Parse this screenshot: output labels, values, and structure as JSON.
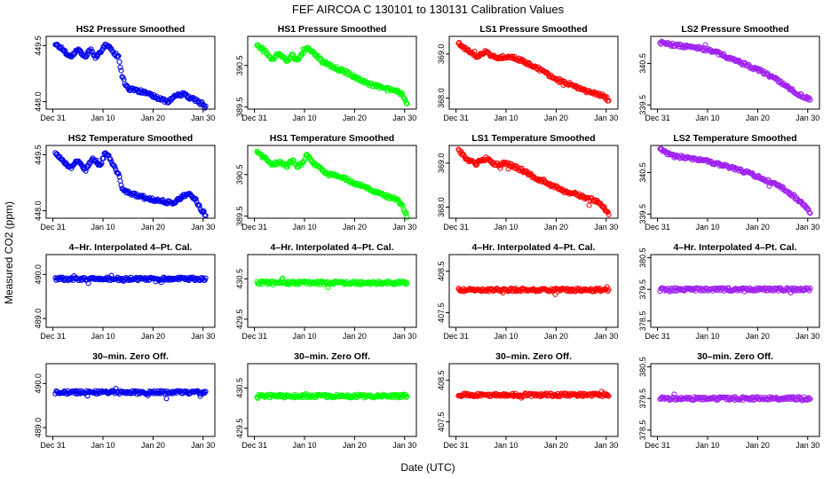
{
  "figure": {
    "title": "FEF   AIRCOA C   130101 to 130131   Calibration Values",
    "xlabel": "Date (UTC)",
    "ylabel": "Measured CO2 (ppm)"
  },
  "colors": {
    "blue": "#0000ee",
    "green": "#00ff00",
    "red": "#ff0000",
    "purple": "#a020f0"
  },
  "chart_data": [
    {
      "type": "scatter",
      "title": "HS2 Pressure Smoothed",
      "color": "blue",
      "xlim": [
        0,
        31
      ],
      "x_ticks": [
        0,
        10,
        20,
        30
      ],
      "x_tick_labels": [
        "Dec 31",
        "Jan 10",
        "Jan 20",
        "Jan 30"
      ],
      "ylim": [
        447.8,
        449.75
      ],
      "y_ticks": [
        448.0,
        449.5
      ],
      "y_tick_labels": [
        "448.0",
        "449.5"
      ],
      "trend": [
        [
          0.5,
          449.55
        ],
        [
          2,
          449.4
        ],
        [
          3.5,
          449.2
        ],
        [
          5,
          449.4
        ],
        [
          6.5,
          449.2
        ],
        [
          7.5,
          449.4
        ],
        [
          8.5,
          449.2
        ],
        [
          9.5,
          449.3
        ],
        [
          10.5,
          449.55
        ],
        [
          12,
          449.35
        ],
        [
          13,
          449.2
        ],
        [
          14,
          448.6
        ],
        [
          15,
          448.35
        ],
        [
          17,
          448.3
        ],
        [
          19,
          448.2
        ],
        [
          21,
          448.1
        ],
        [
          23,
          448.0
        ],
        [
          24.5,
          448.15
        ],
        [
          26,
          448.2
        ],
        [
          27.5,
          448.1
        ],
        [
          29,
          448.0
        ],
        [
          29.5,
          447.95
        ],
        [
          30.5,
          447.85
        ]
      ]
    },
    {
      "type": "scatter",
      "title": "HS1 Pressure Smoothed",
      "color": "green",
      "xlim": [
        0,
        31
      ],
      "x_ticks": [
        0,
        10,
        20,
        30
      ],
      "x_tick_labels": [
        "Dec 31",
        "Jan 10",
        "Jan 20",
        "Jan 30"
      ],
      "ylim": [
        389.45,
        391.2
      ],
      "y_ticks": [
        389.5,
        390.5
      ],
      "y_tick_labels": [
        "389.5",
        "390.5"
      ],
      "trend": [
        [
          0.5,
          391.0
        ],
        [
          2,
          390.85
        ],
        [
          3.5,
          390.65
        ],
        [
          5,
          390.8
        ],
        [
          6.5,
          390.6
        ],
        [
          7.5,
          390.75
        ],
        [
          8.5,
          390.6
        ],
        [
          9.5,
          390.8
        ],
        [
          10.5,
          390.95
        ],
        [
          12,
          390.8
        ],
        [
          13.5,
          390.6
        ],
        [
          15,
          390.5
        ],
        [
          17,
          390.4
        ],
        [
          19,
          390.3
        ],
        [
          21,
          390.15
        ],
        [
          23,
          390.05
        ],
        [
          24.5,
          390.0
        ],
        [
          26,
          389.95
        ],
        [
          28,
          389.9
        ],
        [
          29.5,
          389.8
        ],
        [
          30.5,
          389.55
        ]
      ]
    },
    {
      "type": "scatter",
      "title": "LS1 Pressure Smoothed",
      "color": "red",
      "xlim": [
        0,
        31
      ],
      "x_ticks": [
        0,
        10,
        20,
        30
      ],
      "x_tick_labels": [
        "Dec 31",
        "Jan 10",
        "Jan 20",
        "Jan 30"
      ],
      "ylim": [
        367.75,
        369.4
      ],
      "y_ticks": [
        368.0,
        369.0
      ],
      "y_tick_labels": [
        "368.0",
        "369.0"
      ],
      "trend": [
        [
          0.5,
          369.25
        ],
        [
          2,
          369.1
        ],
        [
          4,
          368.95
        ],
        [
          6,
          369.05
        ],
        [
          8,
          368.9
        ],
        [
          10,
          368.95
        ],
        [
          12,
          368.9
        ],
        [
          14,
          368.8
        ],
        [
          16,
          368.7
        ],
        [
          18,
          368.55
        ],
        [
          20,
          368.45
        ],
        [
          22,
          368.35
        ],
        [
          24,
          368.25
        ],
        [
          26,
          368.15
        ],
        [
          28,
          368.1
        ],
        [
          29.5,
          368.05
        ],
        [
          30.5,
          367.95
        ]
      ]
    },
    {
      "type": "scatter",
      "title": "LS2 Pressure Smoothed",
      "color": "purple",
      "xlim": [
        0,
        31
      ],
      "x_ticks": [
        0,
        10,
        20,
        30
      ],
      "x_tick_labels": [
        "Dec 31",
        "Jan 10",
        "Jan 20",
        "Jan 30"
      ],
      "ylim": [
        339.4,
        341.15
      ],
      "y_ticks": [
        339.5,
        340.5
      ],
      "y_tick_labels": [
        "339.5",
        "340.5"
      ],
      "trend": [
        [
          0.5,
          341.0
        ],
        [
          3,
          340.95
        ],
        [
          6,
          340.9
        ],
        [
          9,
          340.85
        ],
        [
          12,
          340.75
        ],
        [
          15,
          340.6
        ],
        [
          18,
          340.45
        ],
        [
          21,
          340.3
        ],
        [
          24,
          340.1
        ],
        [
          27,
          339.85
        ],
        [
          29,
          339.7
        ],
        [
          30.5,
          339.65
        ]
      ]
    },
    {
      "type": "scatter",
      "title": "HS2 Temperature Smoothed",
      "color": "blue",
      "xlim": [
        0,
        31
      ],
      "x_ticks": [
        0,
        10,
        20,
        30
      ],
      "x_tick_labels": [
        "Dec 31",
        "Jan 10",
        "Jan 20",
        "Jan 30"
      ],
      "ylim": [
        447.8,
        449.75
      ],
      "y_ticks": [
        448.0,
        449.5
      ],
      "y_tick_labels": [
        "448.0",
        "449.5"
      ],
      "trend": [
        [
          0.5,
          449.55
        ],
        [
          2,
          449.35
        ],
        [
          3.5,
          449.15
        ],
        [
          5,
          449.35
        ],
        [
          6.5,
          449.1
        ],
        [
          8,
          449.4
        ],
        [
          9.5,
          449.2
        ],
        [
          10.5,
          449.6
        ],
        [
          12,
          449.25
        ],
        [
          13,
          449.0
        ],
        [
          14,
          448.55
        ],
        [
          16,
          448.45
        ],
        [
          18,
          448.35
        ],
        [
          20,
          448.3
        ],
        [
          22,
          448.25
        ],
        [
          24,
          448.2
        ],
        [
          25.5,
          448.35
        ],
        [
          27,
          448.45
        ],
        [
          28.5,
          448.3
        ],
        [
          29.5,
          448.05
        ],
        [
          30.5,
          447.9
        ]
      ]
    },
    {
      "type": "scatter",
      "title": "HS1 Temperature Smoothed",
      "color": "green",
      "xlim": [
        0,
        31
      ],
      "x_ticks": [
        0,
        10,
        20,
        30
      ],
      "x_tick_labels": [
        "Dec 31",
        "Jan 10",
        "Jan 20",
        "Jan 30"
      ],
      "ylim": [
        389.45,
        391.2
      ],
      "y_ticks": [
        389.5,
        390.5
      ],
      "y_tick_labels": [
        "389.5",
        "390.5"
      ],
      "trend": [
        [
          0.5,
          391.05
        ],
        [
          2,
          390.9
        ],
        [
          3.5,
          390.75
        ],
        [
          5,
          390.8
        ],
        [
          6.5,
          390.7
        ],
        [
          7.5,
          390.85
        ],
        [
          8.5,
          390.7
        ],
        [
          9.5,
          390.75
        ],
        [
          10.5,
          391.0
        ],
        [
          12,
          390.75
        ],
        [
          13.5,
          390.6
        ],
        [
          15,
          390.5
        ],
        [
          17,
          390.45
        ],
        [
          19,
          390.35
        ],
        [
          21,
          390.25
        ],
        [
          23,
          390.15
        ],
        [
          25,
          390.05
        ],
        [
          27,
          389.95
        ],
        [
          28.5,
          389.9
        ],
        [
          29.5,
          389.75
        ],
        [
          30.5,
          389.5
        ]
      ]
    },
    {
      "type": "scatter",
      "title": "LS1 Temperature Smoothed",
      "color": "red",
      "xlim": [
        0,
        31
      ],
      "x_ticks": [
        0,
        10,
        20,
        30
      ],
      "x_tick_labels": [
        "Dec 31",
        "Jan 10",
        "Jan 20",
        "Jan 30"
      ],
      "ylim": [
        367.75,
        369.4
      ],
      "y_ticks": [
        368.0,
        369.0
      ],
      "y_tick_labels": [
        "368.0",
        "369.0"
      ],
      "trend": [
        [
          0.5,
          369.3
        ],
        [
          2,
          369.1
        ],
        [
          4,
          369.0
        ],
        [
          6,
          369.1
        ],
        [
          8,
          368.95
        ],
        [
          10,
          369.0
        ],
        [
          12,
          368.9
        ],
        [
          14,
          368.8
        ],
        [
          16,
          368.65
        ],
        [
          18,
          368.55
        ],
        [
          20,
          368.45
        ],
        [
          22,
          368.35
        ],
        [
          24,
          368.3
        ],
        [
          26,
          368.2
        ],
        [
          28,
          368.15
        ],
        [
          29.5,
          368.0
        ],
        [
          30.5,
          367.85
        ]
      ]
    },
    {
      "type": "scatter",
      "title": "LS2 Temperature Smoothed",
      "color": "purple",
      "xlim": [
        0,
        31
      ],
      "x_ticks": [
        0,
        10,
        20,
        30
      ],
      "x_tick_labels": [
        "Dec 31",
        "Jan 10",
        "Jan 20",
        "Jan 30"
      ],
      "ylim": [
        339.4,
        341.15
      ],
      "y_ticks": [
        339.5,
        340.5
      ],
      "y_tick_labels": [
        "339.5",
        "340.5"
      ],
      "trend": [
        [
          0.5,
          341.05
        ],
        [
          3,
          340.9
        ],
        [
          6,
          340.85
        ],
        [
          9,
          340.8
        ],
        [
          12,
          340.7
        ],
        [
          15,
          340.6
        ],
        [
          18,
          340.5
        ],
        [
          21,
          340.35
        ],
        [
          24,
          340.2
        ],
        [
          27,
          339.95
        ],
        [
          29,
          339.75
        ],
        [
          30.5,
          339.55
        ]
      ]
    },
    {
      "type": "scatter",
      "title": "4–Hr. Interpolated 4–Pt. Cal.",
      "color": "blue",
      "xlim": [
        0,
        31
      ],
      "x_ticks": [
        0,
        10,
        20,
        30
      ],
      "x_tick_labels": [
        "Dec 31",
        "Jan 10",
        "Jan 20",
        "Jan 30"
      ],
      "ylim": [
        488.8,
        490.45
      ],
      "y_ticks": [
        489.0,
        490.0
      ],
      "y_tick_labels": [
        "489.0",
        "490.0"
      ],
      "trend": [
        [
          0.5,
          489.9
        ],
        [
          30.5,
          489.9
        ]
      ]
    },
    {
      "type": "scatter",
      "title": "4–Hr. Interpolated 4–Pt. Cal.",
      "color": "green",
      "xlim": [
        0,
        31
      ],
      "x_ticks": [
        0,
        10,
        20,
        30
      ],
      "x_tick_labels": [
        "Dec 31",
        "Jan 10",
        "Jan 20",
        "Jan 30"
      ],
      "ylim": [
        429.3,
        431.1
      ],
      "y_ticks": [
        429.5,
        430.5
      ],
      "y_tick_labels": [
        "429.5",
        "430.5"
      ],
      "trend": [
        [
          0.5,
          430.4
        ],
        [
          30.5,
          430.4
        ]
      ]
    },
    {
      "type": "scatter",
      "title": "4–Hr. Interpolated 4–Pt. Cal.",
      "color": "red",
      "xlim": [
        0,
        31
      ],
      "x_ticks": [
        0,
        10,
        20,
        30
      ],
      "x_tick_labels": [
        "Dec 31",
        "Jan 10",
        "Jan 20",
        "Jan 30"
      ],
      "ylim": [
        407.15,
        408.9
      ],
      "y_ticks": [
        407.5,
        408.5
      ],
      "y_tick_labels": [
        "407.5",
        "408.5"
      ],
      "trend": [
        [
          0.5,
          408.05
        ],
        [
          30.5,
          408.05
        ]
      ]
    },
    {
      "type": "scatter",
      "title": "4–Hr. Interpolated 4–Pt. Cal.",
      "color": "purple",
      "xlim": [
        0,
        31
      ],
      "x_ticks": [
        0,
        10,
        20,
        30
      ],
      "x_tick_labels": [
        "Dec 31",
        "Jan 10",
        "Jan 20",
        "Jan 30"
      ],
      "ylim": [
        378.3,
        380.6
      ],
      "y_ticks": [
        378.5,
        379.5,
        380.5
      ],
      "y_tick_labels": [
        "378.5",
        "379.5",
        "380.5"
      ],
      "trend": [
        [
          0.5,
          379.5
        ],
        [
          30.5,
          379.5
        ]
      ]
    },
    {
      "type": "scatter",
      "title": "30–min. Zero Off.",
      "color": "blue",
      "xlim": [
        0,
        31
      ],
      "x_ticks": [
        0,
        10,
        20,
        30
      ],
      "x_tick_labels": [
        "Dec 31",
        "Jan 10",
        "Jan 20",
        "Jan 30"
      ],
      "ylim": [
        488.8,
        490.45
      ],
      "y_ticks": [
        489.0,
        490.0
      ],
      "y_tick_labels": [
        "489.0",
        "490.0"
      ],
      "trend": [
        [
          0.5,
          489.8
        ],
        [
          30.5,
          489.8
        ]
      ]
    },
    {
      "type": "scatter",
      "title": "30–min. Zero Off.",
      "color": "green",
      "xlim": [
        0,
        31
      ],
      "x_ticks": [
        0,
        10,
        20,
        30
      ],
      "x_tick_labels": [
        "Dec 31",
        "Jan 10",
        "Jan 20",
        "Jan 30"
      ],
      "ylim": [
        429.3,
        431.1
      ],
      "y_ticks": [
        429.5,
        430.5
      ],
      "y_tick_labels": [
        "429.5",
        "430.5"
      ],
      "trend": [
        [
          0.5,
          430.3
        ],
        [
          30.5,
          430.3
        ]
      ]
    },
    {
      "type": "scatter",
      "title": "30–min. Zero Off.",
      "color": "red",
      "xlim": [
        0,
        31
      ],
      "x_ticks": [
        0,
        10,
        20,
        30
      ],
      "x_tick_labels": [
        "Dec 31",
        "Jan 10",
        "Jan 20",
        "Jan 30"
      ],
      "ylim": [
        407.15,
        408.9
      ],
      "y_ticks": [
        407.5,
        408.5
      ],
      "y_tick_labels": [
        "407.5",
        "408.5"
      ],
      "trend": [
        [
          0.5,
          408.15
        ],
        [
          30.5,
          408.15
        ]
      ]
    },
    {
      "type": "scatter",
      "title": "30–min. Zero Off.",
      "color": "purple",
      "xlim": [
        0,
        31
      ],
      "x_ticks": [
        0,
        10,
        20,
        30
      ],
      "x_tick_labels": [
        "Dec 31",
        "Jan 10",
        "Jan 20",
        "Jan 30"
      ],
      "ylim": [
        378.3,
        380.6
      ],
      "y_ticks": [
        378.5,
        379.5,
        380.5
      ],
      "y_tick_labels": [
        "378.5",
        "379.5",
        "380.5"
      ],
      "trend": [
        [
          0.5,
          379.5
        ],
        [
          30.5,
          379.5
        ]
      ]
    }
  ]
}
